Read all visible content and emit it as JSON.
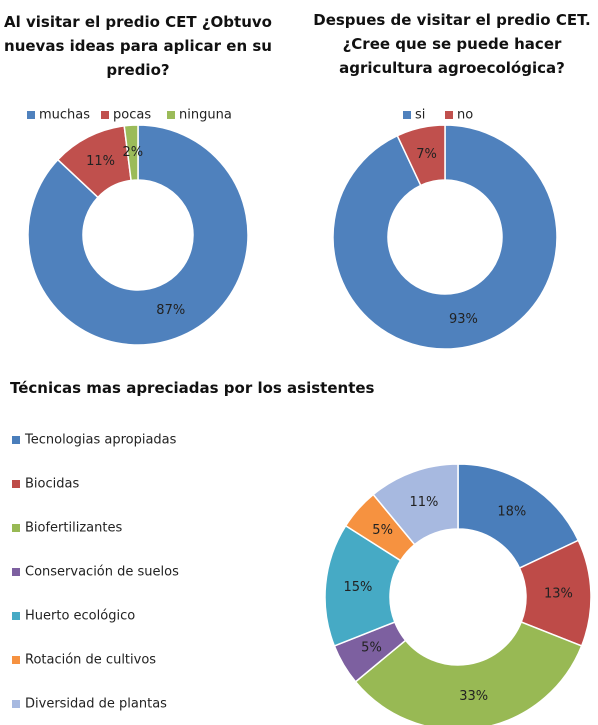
{
  "chart_data": [
    {
      "type": "donut",
      "title": "Al visitar el predio CET ¿Obtuvo nuevas ideas para aplicar en su predio?",
      "categories": [
        "muchas",
        "pocas",
        "ninguna"
      ],
      "values": [
        87,
        11,
        2
      ],
      "value_labels": [
        "87%",
        "11%",
        "2%"
      ],
      "colors": [
        "#4f81bd",
        "#c0504d",
        "#9bbb59"
      ],
      "legend": "top"
    },
    {
      "type": "donut",
      "title": "Despues de visitar el predio CET. ¿Cree que se puede hacer agricultura agroecológica?",
      "categories": [
        "si",
        "no"
      ],
      "values": [
        93,
        7
      ],
      "value_labels": [
        "93%",
        "7%"
      ],
      "colors": [
        "#4f81bd",
        "#c0504d"
      ],
      "legend": "top"
    },
    {
      "type": "donut",
      "title": "Técnicas mas apreciadas por los asistentes",
      "categories": [
        "Tecnologias apropiadas",
        "Biocidas",
        "Biofertilizantes",
        "Conservación de suelos",
        "Huerto ecológico",
        "Rotación de cultivos",
        "Diversidad de plantas"
      ],
      "values": [
        18,
        13,
        33,
        5,
        15,
        5,
        11
      ],
      "value_labels": [
        "18%",
        "13%",
        "33%",
        "5%",
        "15%",
        "5%",
        "11%"
      ],
      "colors": [
        "#4a7ebb",
        "#be4b48",
        "#98b954",
        "#7d60a0",
        "#46aac5",
        "#f69240",
        "#a7b9e0"
      ],
      "legend": "left"
    }
  ]
}
